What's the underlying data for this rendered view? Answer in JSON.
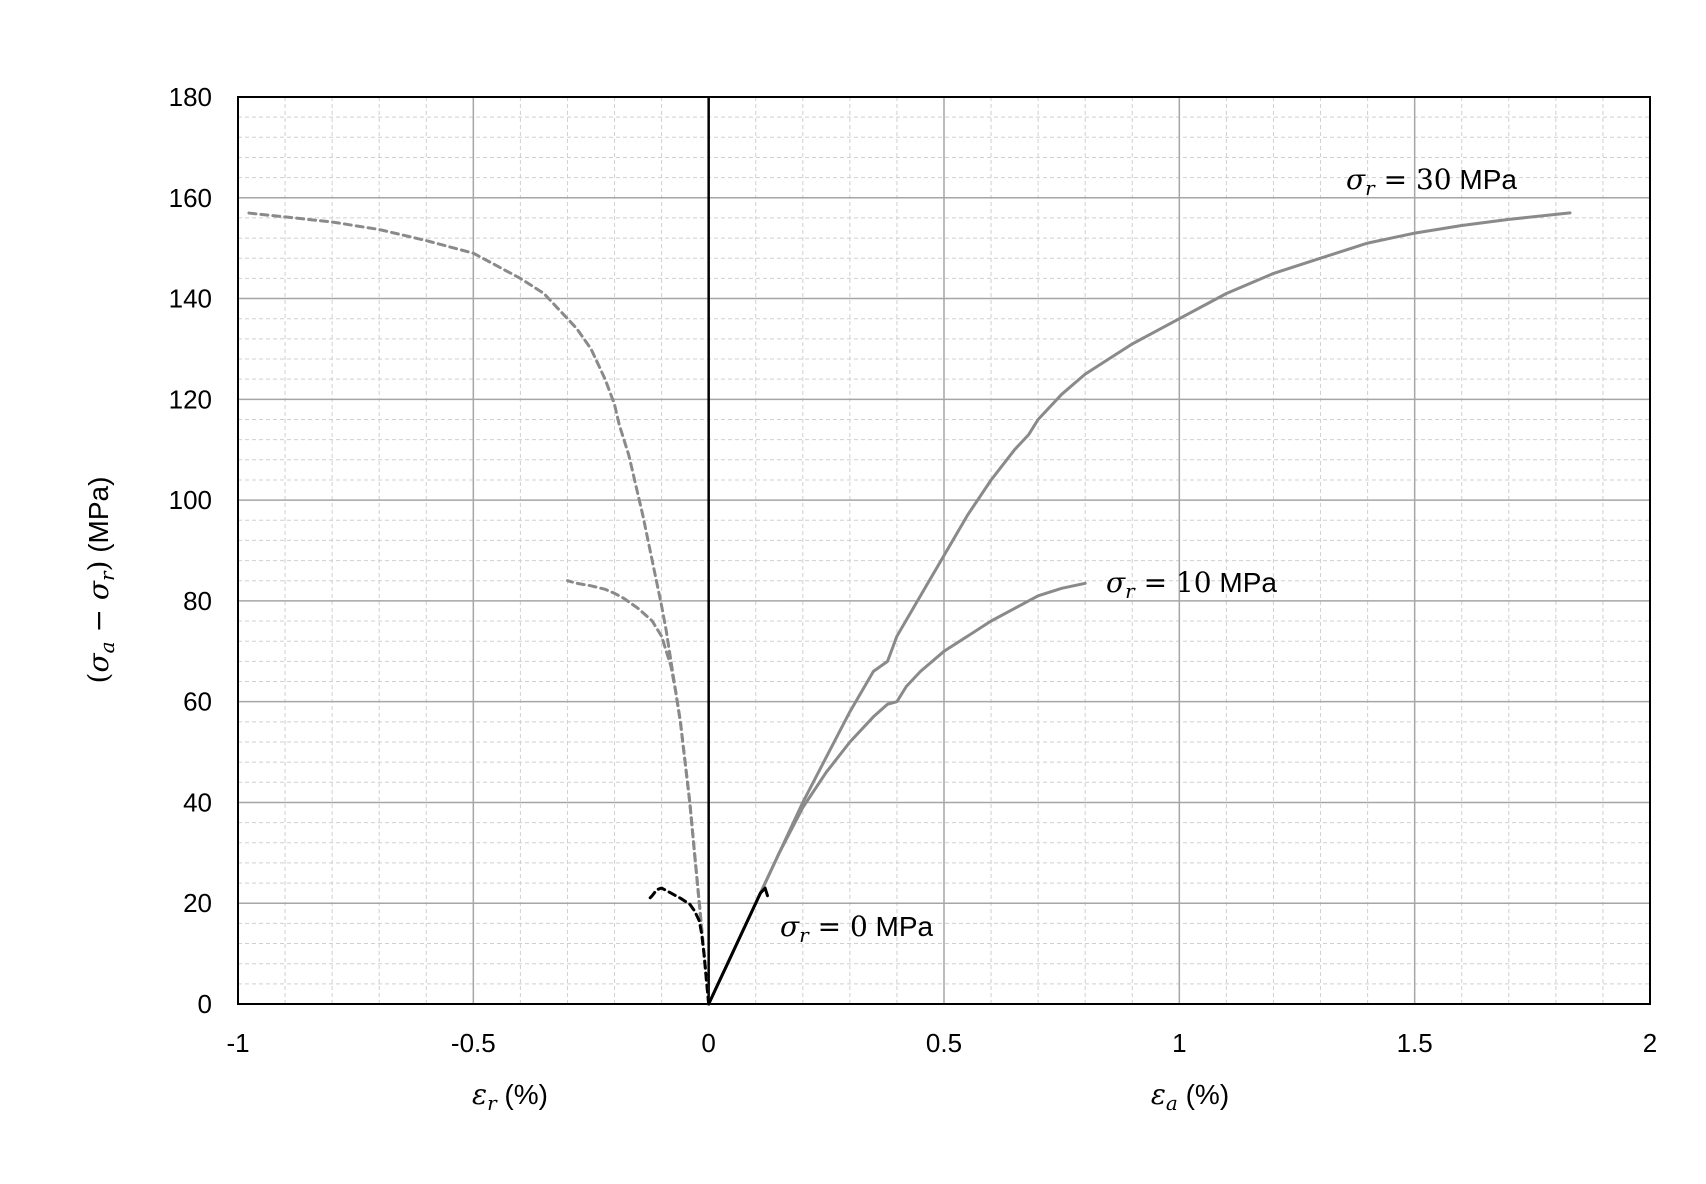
{
  "chart_data": {
    "type": "line",
    "title": "",
    "xlim": [
      -1,
      2
    ],
    "ylim": [
      0,
      180
    ],
    "x_ticks": [
      -1,
      -0.5,
      0,
      0.5,
      1,
      1.5,
      2
    ],
    "x_tick_labels": [
      "-1",
      "-0.5",
      "0",
      "0.5",
      "1",
      "1.5",
      "2"
    ],
    "y_ticks": [
      0,
      20,
      40,
      60,
      80,
      100,
      120,
      140,
      160,
      180
    ],
    "y_tick_labels": [
      "0",
      "20",
      "40",
      "60",
      "80",
      "100",
      "120",
      "140",
      "160",
      "180"
    ],
    "grid": {
      "major": true,
      "minor": true,
      "minor_x_step": 0.1,
      "minor_y_step": 4
    },
    "ylabel": {
      "open": "(",
      "sym1": "σ",
      "sub1": "a",
      "minus": " − ",
      "sym2": "σ",
      "sub2": "r",
      "close": ")",
      "unit": " (MPa)"
    },
    "xlabel_left": {
      "sym": "ε",
      "sub": "r",
      "unit": " (%)"
    },
    "xlabel_right": {
      "sym": "ε",
      "sub": "a",
      "unit": " (%)"
    },
    "colors": {
      "gray": "#8a8a8a",
      "black": "#000000",
      "grid_major": "#a6a6a6",
      "grid_minor": "#d0d0d0"
    },
    "annotations": [
      {
        "sym": "σ",
        "sub": "r",
        "eq": " = ",
        "num": "30",
        "unit": " MPa",
        "x": 1.35,
        "y": 160
      },
      {
        "sym": "σ",
        "sub": "r",
        "eq": " = ",
        "num": "10",
        "unit": " MPa",
        "x": 0.835,
        "y": 80
      },
      {
        "sym": "σ",
        "sub": "r",
        "eq": " = ",
        "num": "0",
        "unit": " MPa",
        "x": 0.15,
        "y": 12
      }
    ],
    "series": [
      {
        "id": "axial-30",
        "color": "gray",
        "dash": false,
        "x": [
          0,
          0.05,
          0.1,
          0.15,
          0.2,
          0.25,
          0.3,
          0.35,
          0.38,
          0.4,
          0.45,
          0.5,
          0.55,
          0.6,
          0.65,
          0.68,
          0.7,
          0.75,
          0.8,
          0.9,
          1.0,
          1.1,
          1.2,
          1.3,
          1.4,
          1.5,
          1.6,
          1.7,
          1.83
        ],
        "y": [
          0,
          10,
          20,
          30,
          40,
          49,
          58,
          66,
          68,
          73,
          81,
          89,
          97,
          104,
          110,
          113,
          116,
          121,
          125,
          131,
          136,
          141,
          145,
          148,
          151,
          153,
          154.5,
          155.7,
          157
        ]
      },
      {
        "id": "radial-30",
        "color": "gray",
        "dash": true,
        "x": [
          0,
          -0.01,
          -0.02,
          -0.03,
          -0.04,
          -0.05,
          -0.06,
          -0.07,
          -0.08,
          -0.09,
          -0.1,
          -0.12,
          -0.14,
          -0.15,
          -0.16,
          -0.17,
          -0.18,
          -0.19,
          -0.2,
          -0.22,
          -0.25,
          -0.28,
          -0.3,
          -0.35,
          -0.4,
          -0.5,
          -0.6,
          -0.7,
          -0.8,
          -0.9,
          -0.98
        ],
        "y": [
          0,
          10,
          20,
          30,
          40,
          48,
          56,
          62,
          68,
          74,
          79,
          88,
          97,
          101,
          105,
          109,
          112,
          115,
          119,
          124,
          130,
          134,
          136,
          141,
          144,
          149,
          151.5,
          153.7,
          155.2,
          156.2,
          157
        ]
      },
      {
        "id": "axial-10",
        "color": "gray",
        "dash": false,
        "x": [
          0,
          0.05,
          0.1,
          0.15,
          0.2,
          0.25,
          0.3,
          0.35,
          0.38,
          0.4,
          0.42,
          0.45,
          0.5,
          0.55,
          0.6,
          0.65,
          0.7,
          0.75,
          0.8
        ],
        "y": [
          0,
          10,
          20,
          30,
          39,
          46,
          52,
          57,
          59.5,
          60,
          63,
          66,
          70,
          73,
          76,
          78.5,
          81,
          82.5,
          83.5
        ]
      },
      {
        "id": "radial-10",
        "color": "gray",
        "dash": true,
        "x": [
          0,
          -0.01,
          -0.02,
          -0.03,
          -0.04,
          -0.05,
          -0.06,
          -0.07,
          -0.08,
          -0.09,
          -0.1,
          -0.12,
          -0.15,
          -0.18,
          -0.2,
          -0.22,
          -0.25,
          -0.28,
          -0.3
        ],
        "y": [
          0,
          10,
          20,
          30,
          40,
          48,
          56,
          62,
          67,
          70,
          73,
          76,
          78.5,
          80.5,
          81.5,
          82.3,
          83,
          83.5,
          84
        ]
      },
      {
        "id": "axial-0",
        "color": "black",
        "dash": false,
        "x": [
          0,
          0.02,
          0.04,
          0.06,
          0.08,
          0.1,
          0.11,
          0.12,
          0.125
        ],
        "y": [
          0,
          4,
          8,
          12,
          16,
          20,
          22,
          23,
          21.5
        ]
      },
      {
        "id": "radial-0",
        "color": "black",
        "dash": true,
        "x": [
          0,
          -0.005,
          -0.01,
          -0.015,
          -0.02,
          -0.03,
          -0.04,
          -0.06,
          -0.08,
          -0.1,
          -0.11,
          -0.12,
          -0.125
        ],
        "y": [
          0,
          5,
          10,
          14,
          16.5,
          18.5,
          19.8,
          21,
          22,
          23,
          22.7,
          21.5,
          21
        ]
      }
    ]
  }
}
